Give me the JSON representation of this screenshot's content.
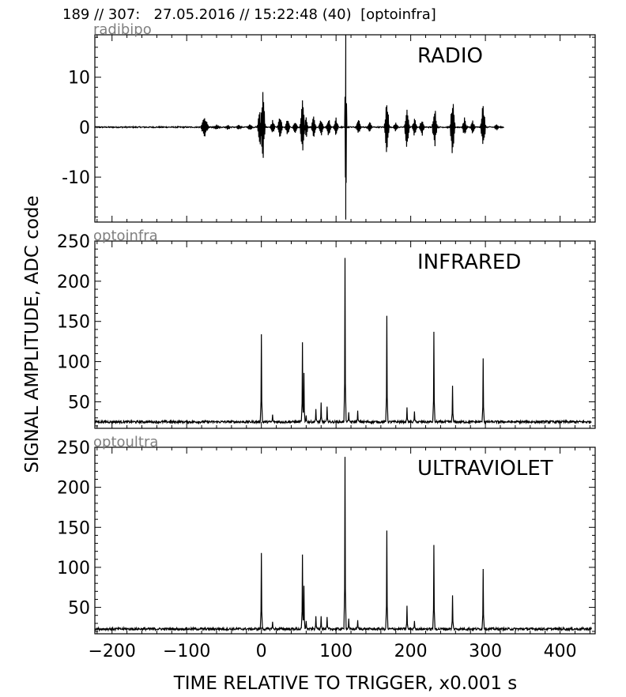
{
  "header": "189 // 307:   27.05.2016 // 15:22:48 (40)  [optoinfra]",
  "ylabel": "SIGNAL AMPLITUDE,  ADC code",
  "xlabel": "TIME RELATIVE TO TRIGGER,   x0.001 s",
  "x_ticks": [
    -200,
    -100,
    0,
    100,
    200,
    300,
    400
  ],
  "x_tick_labels": [
    "−200",
    "−100",
    "0",
    "100",
    "200",
    "300",
    "400"
  ],
  "colors": {
    "trace": "#000000",
    "channel_label": "#808080",
    "axes": "#000000"
  },
  "chart_data": [
    {
      "type": "line",
      "channel": "radibipo",
      "title": "RADIO",
      "xlim": [
        -223,
        447
      ],
      "ylim": [
        -19,
        18.5
      ],
      "y_ticks": [
        -10,
        0,
        10
      ],
      "y_tick_labels": [
        "-10",
        "0",
        "10"
      ],
      "baseline": 0,
      "noise": 0.12,
      "x_end": 325,
      "bursts": [
        {
          "x": -76,
          "amp": 2.3,
          "width": 5
        },
        {
          "x": -60,
          "amp": 0.6,
          "width": 4
        },
        {
          "x": -45,
          "amp": 0.6,
          "width": 3
        },
        {
          "x": -30,
          "amp": 0.6,
          "width": 3
        },
        {
          "x": -15,
          "amp": 0.8,
          "width": 3
        },
        {
          "x": -2,
          "amp": 4.3,
          "width": 3
        },
        {
          "x": 2,
          "amp": 7.5,
          "width": 3
        },
        {
          "x": 15,
          "amp": 1.5,
          "width": 3
        },
        {
          "x": 25,
          "amp": 2.5,
          "width": 3
        },
        {
          "x": 35,
          "amp": 1.8,
          "width": 3
        },
        {
          "x": 45,
          "amp": 1.5,
          "width": 3
        },
        {
          "x": 55,
          "amp": 7.0,
          "width": 3
        },
        {
          "x": 60,
          "amp": 2.5,
          "width": 2
        },
        {
          "x": 70,
          "amp": 2.5,
          "width": 3
        },
        {
          "x": 80,
          "amp": 2.0,
          "width": 3
        },
        {
          "x": 90,
          "amp": 2.0,
          "width": 3
        },
        {
          "x": 100,
          "amp": 2.0,
          "width": 3
        },
        {
          "x": 113,
          "amp": 18.5,
          "width": 1
        },
        {
          "x": 130,
          "amp": 1.8,
          "width": 3
        },
        {
          "x": 145,
          "amp": 1.2,
          "width": 3
        },
        {
          "x": 168,
          "amp": 6.0,
          "width": 3
        },
        {
          "x": 180,
          "amp": 1.0,
          "width": 3
        },
        {
          "x": 195,
          "amp": 5.0,
          "width": 3
        },
        {
          "x": 205,
          "amp": 2.0,
          "width": 3
        },
        {
          "x": 215,
          "amp": 2.0,
          "width": 3
        },
        {
          "x": 232,
          "amp": 4.8,
          "width": 3
        },
        {
          "x": 256,
          "amp": 6.5,
          "width": 3
        },
        {
          "x": 272,
          "amp": 2.0,
          "width": 3
        },
        {
          "x": 283,
          "amp": 1.5,
          "width": 3
        },
        {
          "x": 297,
          "amp": 5.5,
          "width": 3
        },
        {
          "x": 315,
          "amp": 0.8,
          "width": 3
        }
      ]
    },
    {
      "type": "line",
      "channel": "optoinfra",
      "title": "INFRARED",
      "xlim": [
        -223,
        447
      ],
      "ylim": [
        17,
        250
      ],
      "y_ticks": [
        50,
        100,
        150,
        200,
        250
      ],
      "y_tick_labels": [
        "50",
        "100",
        "150",
        "200",
        "250"
      ],
      "baseline": 25,
      "noise": 1.5,
      "peaks": [
        {
          "x": 0,
          "y": 134
        },
        {
          "x": 15,
          "y": 34
        },
        {
          "x": 55,
          "y": 124
        },
        {
          "x": 57,
          "y": 86
        },
        {
          "x": 60,
          "y": 33
        },
        {
          "x": 73,
          "y": 41
        },
        {
          "x": 80,
          "y": 49
        },
        {
          "x": 88,
          "y": 44
        },
        {
          "x": 112,
          "y": 229
        },
        {
          "x": 117,
          "y": 37
        },
        {
          "x": 129,
          "y": 39
        },
        {
          "x": 168,
          "y": 157
        },
        {
          "x": 195,
          "y": 43
        },
        {
          "x": 205,
          "y": 38
        },
        {
          "x": 231,
          "y": 137
        },
        {
          "x": 256,
          "y": 70
        },
        {
          "x": 297,
          "y": 104
        }
      ]
    },
    {
      "type": "line",
      "channel": "optoultra",
      "title": "ULTRAVIOLET",
      "xlim": [
        -223,
        447
      ],
      "ylim": [
        17,
        250
      ],
      "y_ticks": [
        50,
        100,
        150,
        200,
        250
      ],
      "y_tick_labels": [
        "50",
        "100",
        "150",
        "200",
        "250"
      ],
      "baseline": 23,
      "noise": 1.5,
      "peaks": [
        {
          "x": 0,
          "y": 118
        },
        {
          "x": 15,
          "y": 32
        },
        {
          "x": 55,
          "y": 116
        },
        {
          "x": 57,
          "y": 77
        },
        {
          "x": 60,
          "y": 33
        },
        {
          "x": 73,
          "y": 39
        },
        {
          "x": 80,
          "y": 39
        },
        {
          "x": 88,
          "y": 38
        },
        {
          "x": 112,
          "y": 238
        },
        {
          "x": 117,
          "y": 36
        },
        {
          "x": 129,
          "y": 34
        },
        {
          "x": 168,
          "y": 146
        },
        {
          "x": 195,
          "y": 52
        },
        {
          "x": 205,
          "y": 33
        },
        {
          "x": 231,
          "y": 128
        },
        {
          "x": 256,
          "y": 65
        },
        {
          "x": 297,
          "y": 98
        }
      ]
    }
  ]
}
